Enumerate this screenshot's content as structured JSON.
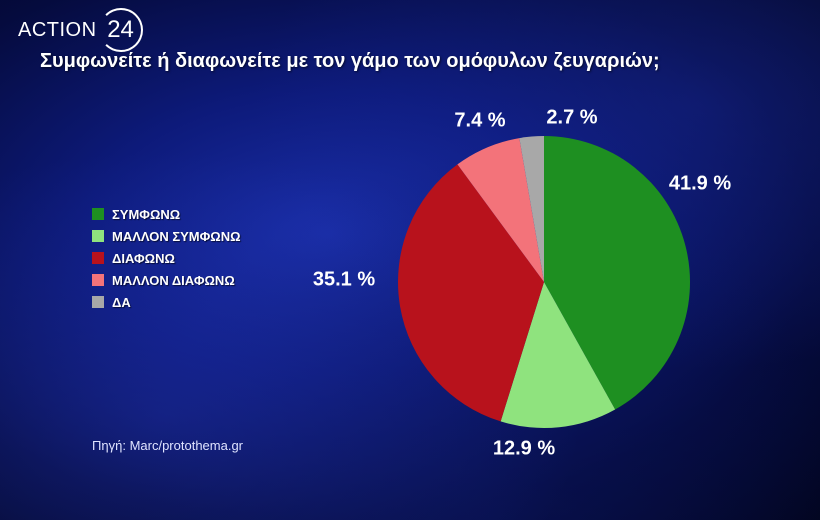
{
  "logo": {
    "text": "ACTION",
    "number": "24"
  },
  "source": "Πηγή: Marc/protothema.gr",
  "colors": {
    "agree": "#1e8f21",
    "rather_agree": "#8fe37e",
    "disagree": "#b8121c",
    "rather_disagree": "#f3737a",
    "dk": "#a8a8a8"
  },
  "chart_data": {
    "type": "pie",
    "title": "Συμφωνείτε ή διαφωνείτε με τον γάμο των ομόφυλων ζευγαριών;",
    "unit": "%",
    "slices": [
      {
        "label": "ΣΥΜΦΩΝΩ",
        "value": 41.9,
        "display": "41.9 %",
        "color": "#1e8f21"
      },
      {
        "label": "ΜΑΛΛΟΝ ΣΥΜΦΩΝΩ",
        "value": 12.9,
        "display": "12.9 %",
        "color": "#8fe37e"
      },
      {
        "label": "ΔΙΑΦΩΝΩ",
        "value": 35.1,
        "display": "35.1 %",
        "color": "#b8121c"
      },
      {
        "label": "ΜΑΛΛΟΝ ΔΙΑΦΩΝΩ",
        "value": 7.4,
        "display": "7.4 %",
        "color": "#f3737a"
      },
      {
        "label": "ΔΑ",
        "value": 2.7,
        "display": "2.7 %",
        "color": "#a8a8a8"
      }
    ],
    "legend_position": "left"
  }
}
